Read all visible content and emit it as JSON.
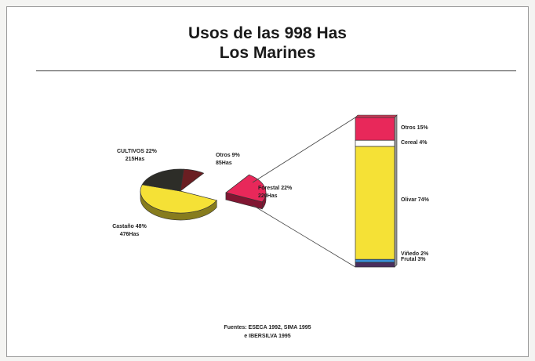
{
  "header": {
    "title_line1": "Usos de las 998 Has",
    "title_line2": "Los Marines"
  },
  "chart_data": [
    {
      "type": "pie",
      "title": "Usos de las 998 Has Los Marines",
      "unit": "Has",
      "slices": [
        {
          "label": "Castaño",
          "pct_label": "48%",
          "has_label": "476Has",
          "value": 476,
          "color": "#f5e136"
        },
        {
          "label": "CULTIVOS",
          "pct_label": "22%",
          "has_label": "215Has",
          "value": 215,
          "color": "#2d2d28"
        },
        {
          "label": "Otros",
          "pct_label": "9%",
          "has_label": "85Has",
          "value": 85,
          "color": "#6a1e22"
        },
        {
          "label": "Forestal",
          "pct_label": "22%",
          "has_label": "220Has",
          "value": 220,
          "color": "#e8285a"
        }
      ]
    },
    {
      "type": "bar",
      "stacked": true,
      "series": [
        {
          "name": "Otros",
          "label": "Otros 15%",
          "value": 15,
          "color": "#e8285a"
        },
        {
          "name": "Cereal",
          "label": "Cereal 4%",
          "value": 4,
          "color": "#ffffff"
        },
        {
          "name": "Olivar",
          "label": "Olivar 74%",
          "value": 74,
          "color": "#f5e136"
        },
        {
          "name": "Viñedo",
          "label": "Viñedo 2%",
          "value": 2,
          "color": "#3a8ed4"
        },
        {
          "name": "Frutal",
          "label": "Frutal 3%",
          "value": 3,
          "color": "#4a2e5e"
        }
      ]
    }
  ],
  "sources": {
    "line1": "Fuentes: ESECA 1992, SIMA 1995",
    "line2": "e IBERSILVA 1995"
  }
}
